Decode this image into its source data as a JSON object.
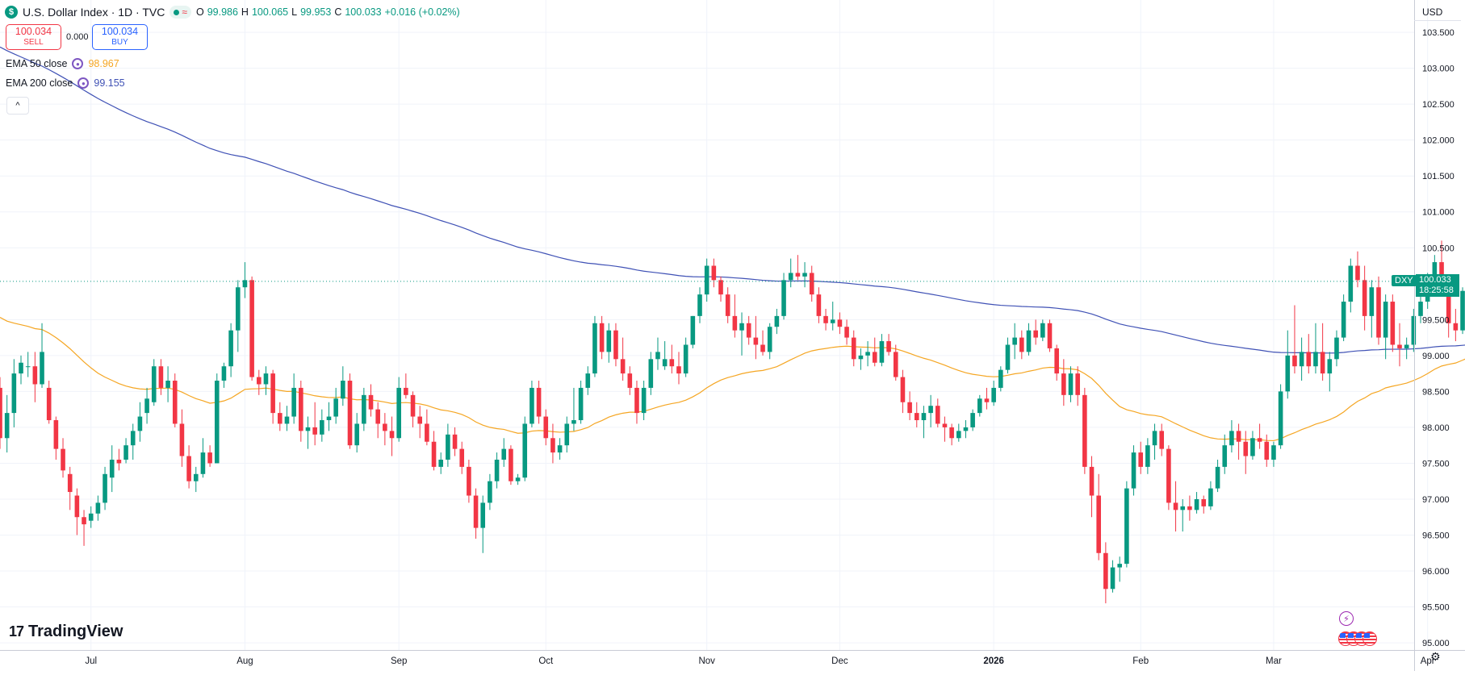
{
  "header": {
    "symbol_title": "U.S. Dollar Index · 1D · TVC",
    "symbol_badge": "$",
    "ohlc": [
      {
        "label": "O",
        "value": "99.986"
      },
      {
        "label": "H",
        "value": "100.065"
      },
      {
        "label": "L",
        "value": "99.953"
      },
      {
        "label": "C",
        "value": "100.033"
      },
      {
        "label": "",
        "value": "+0.016 (+0.02%)"
      }
    ],
    "status_wave": "≈"
  },
  "trade": {
    "sell_price": "100.034",
    "sell_label": "SELL",
    "spread": "0.000",
    "buy_price": "100.034",
    "buy_label": "BUY"
  },
  "indicators": [
    {
      "name": "EMA 50 close",
      "value": "98.967",
      "color": "#f5a623"
    },
    {
      "name": "EMA 200 close",
      "value": "99.155",
      "color": "#3f51b5"
    }
  ],
  "collapse_icon": "^",
  "currency": "USD",
  "last_price": {
    "symbol": "DXY",
    "price": "100.033",
    "countdown": "18:25:58"
  },
  "logo": {
    "mark": "17",
    "text": "TradingView"
  },
  "icons": {
    "bolt": "lightning-icon",
    "flags": "us-flag-icons",
    "settings": "gear-icon"
  },
  "colors": {
    "up": "#089981",
    "down": "#f23645",
    "ema50": "#f5a623",
    "ema200": "#3f51b5",
    "grid": "#f0f3fa"
  },
  "chart_data": {
    "type": "candlestick",
    "ylim": [
      94.9,
      103.95
    ],
    "y_ticks": [
      "103.500",
      "103.000",
      "102.500",
      "102.000",
      "101.500",
      "101.000",
      "100.500",
      "99.500",
      "99.000",
      "98.500",
      "98.000",
      "97.500",
      "97.000",
      "96.500",
      "96.000",
      "95.500",
      "95.000"
    ],
    "x_ticks": [
      {
        "label": "Jul",
        "index": 13
      },
      {
        "label": "Aug",
        "index": 35
      },
      {
        "label": "Sep",
        "index": 57
      },
      {
        "label": "Oct",
        "index": 78
      },
      {
        "label": "Nov",
        "index": 101
      },
      {
        "label": "Dec",
        "index": 120
      },
      {
        "label": "2026",
        "index": 142
      },
      {
        "label": "Feb",
        "index": 163
      },
      {
        "label": "Mar",
        "index": 182
      },
      {
        "label": "Apr",
        "index": 204
      }
    ],
    "last_value": 100.033,
    "ohlc_keys": [
      "open",
      "high",
      "low",
      "close"
    ],
    "candles": [
      [
        98.55,
        98.7,
        97.7,
        97.85
      ],
      [
        97.85,
        98.45,
        97.65,
        98.2
      ],
      [
        98.2,
        98.95,
        98.0,
        98.75
      ],
      [
        98.75,
        99.0,
        98.6,
        98.9
      ],
      [
        98.85,
        99.05,
        98.7,
        98.85
      ],
      [
        98.85,
        99.05,
        98.35,
        98.6
      ],
      [
        98.6,
        99.45,
        98.55,
        99.05
      ],
      [
        98.55,
        98.65,
        98.05,
        98.1
      ],
      [
        98.1,
        98.15,
        97.55,
        97.7
      ],
      [
        97.7,
        97.85,
        97.3,
        97.4
      ],
      [
        97.35,
        97.45,
        96.85,
        97.1
      ],
      [
        97.05,
        97.15,
        96.5,
        96.75
      ],
      [
        96.75,
        96.85,
        96.35,
        96.65
      ],
      [
        96.7,
        96.9,
        96.6,
        96.8
      ],
      [
        96.8,
        97.05,
        96.7,
        96.95
      ],
      [
        96.95,
        97.45,
        96.85,
        97.35
      ],
      [
        97.3,
        97.75,
        97.1,
        97.55
      ],
      [
        97.55,
        97.7,
        97.4,
        97.5
      ],
      [
        97.55,
        97.85,
        97.5,
        97.75
      ],
      [
        97.75,
        98.05,
        97.55,
        97.95
      ],
      [
        97.95,
        98.35,
        97.8,
        98.15
      ],
      [
        98.2,
        98.55,
        98.05,
        98.4
      ],
      [
        98.35,
        98.95,
        98.3,
        98.85
      ],
      [
        98.85,
        98.95,
        98.45,
        98.55
      ],
      [
        98.55,
        98.85,
        98.35,
        98.65
      ],
      [
        98.65,
        98.75,
        98.0,
        98.05
      ],
      [
        98.05,
        98.25,
        97.45,
        97.6
      ],
      [
        97.6,
        97.75,
        97.15,
        97.25
      ],
      [
        97.25,
        97.45,
        97.1,
        97.35
      ],
      [
        97.35,
        97.85,
        97.3,
        97.65
      ],
      [
        97.65,
        97.75,
        97.45,
        97.5
      ],
      [
        97.5,
        98.75,
        97.5,
        98.65
      ],
      [
        98.65,
        98.9,
        98.55,
        98.85
      ],
      [
        98.85,
        99.45,
        98.7,
        99.35
      ],
      [
        99.35,
        100.05,
        99.05,
        99.95
      ],
      [
        99.95,
        100.3,
        99.8,
        100.05
      ],
      [
        100.05,
        100.1,
        98.65,
        98.7
      ],
      [
        98.7,
        98.8,
        98.45,
        98.6
      ],
      [
        98.6,
        98.85,
        98.45,
        98.75
      ],
      [
        98.75,
        98.8,
        98.05,
        98.2
      ],
      [
        98.2,
        98.35,
        97.95,
        98.05
      ],
      [
        98.05,
        98.3,
        97.95,
        98.15
      ],
      [
        98.15,
        98.75,
        98.05,
        98.55
      ],
      [
        98.55,
        98.65,
        97.8,
        97.95
      ],
      [
        97.95,
        98.15,
        97.7,
        98.0
      ],
      [
        98.0,
        98.35,
        97.75,
        97.9
      ],
      [
        97.9,
        98.25,
        97.8,
        98.1
      ],
      [
        98.1,
        98.35,
        97.95,
        98.15
      ],
      [
        98.15,
        98.55,
        98.05,
        98.4
      ],
      [
        98.4,
        98.85,
        98.3,
        98.65
      ],
      [
        98.65,
        98.75,
        97.7,
        97.75
      ],
      [
        97.75,
        98.2,
        97.65,
        98.05
      ],
      [
        98.05,
        98.55,
        97.95,
        98.45
      ],
      [
        98.45,
        98.6,
        98.15,
        98.25
      ],
      [
        98.25,
        98.35,
        97.85,
        98.05
      ],
      [
        98.05,
        98.2,
        97.75,
        97.95
      ],
      [
        97.95,
        98.15,
        97.6,
        97.85
      ],
      [
        97.85,
        98.7,
        97.8,
        98.55
      ],
      [
        98.55,
        98.75,
        98.4,
        98.45
      ],
      [
        98.45,
        98.5,
        98.0,
        98.15
      ],
      [
        98.15,
        98.3,
        97.85,
        98.05
      ],
      [
        98.05,
        98.25,
        97.75,
        97.8
      ],
      [
        97.8,
        97.95,
        97.4,
        97.45
      ],
      [
        97.45,
        97.65,
        97.35,
        97.55
      ],
      [
        97.55,
        98.05,
        97.45,
        97.9
      ],
      [
        97.9,
        98.0,
        97.6,
        97.7
      ],
      [
        97.7,
        97.8,
        97.35,
        97.45
      ],
      [
        97.45,
        97.55,
        96.95,
        97.05
      ],
      [
        97.05,
        97.15,
        96.45,
        96.6
      ],
      [
        96.6,
        97.05,
        96.25,
        96.95
      ],
      [
        96.95,
        97.35,
        96.85,
        97.25
      ],
      [
        97.25,
        97.65,
        97.15,
        97.55
      ],
      [
        97.55,
        97.85,
        97.45,
        97.7
      ],
      [
        97.7,
        97.75,
        97.2,
        97.25
      ],
      [
        97.25,
        97.35,
        97.2,
        97.3
      ],
      [
        97.3,
        98.15,
        97.25,
        98.05
      ],
      [
        98.05,
        98.65,
        98.0,
        98.55
      ],
      [
        98.55,
        98.65,
        98.05,
        98.15
      ],
      [
        98.15,
        98.25,
        97.75,
        97.85
      ],
      [
        97.85,
        98.05,
        97.5,
        97.65
      ],
      [
        97.65,
        97.85,
        97.55,
        97.75
      ],
      [
        97.75,
        98.15,
        97.65,
        98.05
      ],
      [
        98.05,
        98.55,
        97.95,
        98.1
      ],
      [
        98.1,
        98.65,
        98.05,
        98.55
      ],
      [
        98.55,
        98.85,
        98.45,
        98.75
      ],
      [
        98.75,
        99.55,
        98.7,
        99.45
      ],
      [
        99.45,
        99.55,
        98.95,
        99.05
      ],
      [
        99.05,
        99.45,
        98.9,
        99.35
      ],
      [
        99.35,
        99.45,
        98.85,
        98.95
      ],
      [
        98.95,
        99.25,
        98.65,
        98.75
      ],
      [
        98.75,
        98.85,
        98.45,
        98.55
      ],
      [
        98.55,
        98.65,
        98.05,
        98.2
      ],
      [
        98.2,
        98.65,
        98.1,
        98.55
      ],
      [
        98.55,
        99.05,
        98.45,
        98.95
      ],
      [
        98.95,
        99.25,
        98.8,
        99.05
      ],
      [
        98.85,
        99.2,
        98.8,
        98.95
      ],
      [
        98.95,
        99.15,
        98.75,
        98.85
      ],
      [
        98.85,
        99.05,
        98.6,
        98.75
      ],
      [
        98.75,
        99.25,
        98.7,
        99.15
      ],
      [
        99.15,
        99.55,
        99.1,
        99.55
      ],
      [
        99.55,
        99.95,
        99.45,
        99.85
      ],
      [
        99.85,
        100.35,
        99.75,
        100.25
      ],
      [
        100.25,
        100.35,
        99.95,
        100.05
      ],
      [
        100.05,
        100.1,
        99.75,
        99.85
      ],
      [
        99.85,
        99.95,
        99.45,
        99.55
      ],
      [
        99.55,
        99.85,
        99.25,
        99.35
      ],
      [
        99.35,
        99.6,
        99.0,
        99.45
      ],
      [
        99.45,
        99.55,
        99.15,
        99.25
      ],
      [
        99.25,
        99.55,
        98.95,
        99.15
      ],
      [
        99.15,
        99.35,
        99.0,
        99.05
      ],
      [
        99.05,
        99.45,
        98.95,
        99.4
      ],
      [
        99.4,
        99.65,
        99.3,
        99.55
      ],
      [
        99.55,
        100.15,
        99.5,
        100.05
      ],
      [
        100.05,
        100.35,
        99.95,
        100.15
      ],
      [
        100.15,
        100.4,
        100.05,
        100.1
      ],
      [
        100.1,
        100.3,
        99.95,
        100.15
      ],
      [
        100.15,
        100.25,
        99.75,
        99.85
      ],
      [
        99.85,
        99.95,
        99.45,
        99.55
      ],
      [
        99.55,
        99.65,
        99.35,
        99.45
      ],
      [
        99.45,
        99.75,
        99.35,
        99.5
      ],
      [
        99.5,
        99.6,
        99.3,
        99.4
      ],
      [
        99.4,
        99.5,
        99.15,
        99.25
      ],
      [
        99.25,
        99.35,
        98.85,
        98.95
      ],
      [
        98.95,
        99.1,
        98.8,
        99.0
      ],
      [
        99.0,
        99.2,
        98.85,
        99.05
      ],
      [
        99.05,
        99.25,
        98.85,
        98.9
      ],
      [
        98.9,
        99.3,
        98.85,
        99.2
      ],
      [
        99.2,
        99.3,
        99.0,
        99.05
      ],
      [
        99.05,
        99.15,
        98.65,
        98.7
      ],
      [
        98.7,
        98.8,
        98.2,
        98.35
      ],
      [
        98.35,
        98.5,
        98.1,
        98.2
      ],
      [
        98.2,
        98.35,
        98.0,
        98.1
      ],
      [
        98.1,
        98.3,
        97.85,
        98.2
      ],
      [
        98.2,
        98.45,
        98.0,
        98.3
      ],
      [
        98.3,
        98.4,
        98.0,
        98.05
      ],
      [
        98.05,
        98.15,
        97.8,
        98.0
      ],
      [
        98.0,
        98.05,
        97.75,
        97.85
      ],
      [
        97.85,
        98.05,
        97.8,
        97.95
      ],
      [
        97.95,
        98.1,
        97.85,
        98.0
      ],
      [
        98.0,
        98.25,
        97.95,
        98.2
      ],
      [
        98.2,
        98.45,
        98.15,
        98.4
      ],
      [
        98.4,
        98.55,
        98.25,
        98.35
      ],
      [
        98.35,
        98.65,
        98.3,
        98.55
      ],
      [
        98.55,
        98.85,
        98.5,
        98.8
      ],
      [
        98.8,
        99.25,
        98.75,
        99.15
      ],
      [
        99.15,
        99.45,
        98.95,
        99.25
      ],
      [
        99.25,
        99.35,
        98.95,
        99.05
      ],
      [
        99.05,
        99.45,
        99.0,
        99.35
      ],
      [
        99.35,
        99.5,
        99.15,
        99.25
      ],
      [
        99.25,
        99.5,
        99.2,
        99.45
      ],
      [
        99.45,
        99.5,
        99.05,
        99.1
      ],
      [
        99.1,
        99.15,
        98.65,
        98.75
      ],
      [
        98.75,
        98.95,
        98.3,
        98.45
      ],
      [
        98.45,
        98.85,
        98.35,
        98.75
      ],
      [
        98.75,
        98.85,
        98.3,
        98.45
      ],
      [
        98.45,
        98.55,
        97.35,
        97.45
      ],
      [
        97.45,
        97.6,
        96.75,
        97.05
      ],
      [
        97.05,
        97.35,
        96.15,
        96.25
      ],
      [
        96.25,
        96.4,
        95.55,
        95.75
      ],
      [
        95.75,
        96.15,
        95.7,
        96.05
      ],
      [
        96.05,
        96.2,
        95.85,
        96.1
      ],
      [
        96.1,
        97.25,
        96.05,
        97.15
      ],
      [
        97.15,
        97.75,
        97.05,
        97.65
      ],
      [
        97.65,
        97.8,
        97.35,
        97.45
      ],
      [
        97.45,
        97.85,
        97.35,
        97.75
      ],
      [
        97.75,
        98.05,
        97.55,
        97.95
      ],
      [
        97.95,
        98.05,
        97.6,
        97.7
      ],
      [
        97.7,
        97.75,
        96.85,
        96.95
      ],
      [
        96.95,
        97.25,
        96.55,
        96.85
      ],
      [
        96.85,
        97.0,
        96.55,
        96.9
      ],
      [
        96.9,
        97.05,
        96.7,
        96.85
      ],
      [
        96.85,
        97.1,
        96.8,
        97.0
      ],
      [
        97.0,
        97.05,
        96.8,
        96.9
      ],
      [
        96.9,
        97.25,
        96.85,
        97.15
      ],
      [
        97.15,
        97.55,
        97.1,
        97.45
      ],
      [
        97.45,
        97.9,
        97.35,
        97.75
      ],
      [
        97.75,
        98.1,
        97.65,
        97.95
      ],
      [
        97.95,
        98.05,
        97.55,
        97.8
      ],
      [
        97.8,
        97.95,
        97.35,
        97.6
      ],
      [
        97.6,
        97.95,
        97.55,
        97.85
      ],
      [
        97.85,
        98.05,
        97.7,
        97.8
      ],
      [
        97.8,
        97.9,
        97.45,
        97.55
      ],
      [
        97.55,
        97.8,
        97.45,
        97.75
      ],
      [
        97.75,
        98.6,
        97.7,
        98.5
      ],
      [
        98.5,
        99.35,
        98.4,
        99.0
      ],
      [
        99.0,
        99.7,
        98.75,
        98.85
      ],
      [
        98.85,
        99.25,
        98.65,
        99.05
      ],
      [
        99.05,
        99.3,
        98.75,
        98.85
      ],
      [
        98.85,
        99.45,
        98.75,
        99.05
      ],
      [
        99.05,
        99.45,
        98.65,
        98.75
      ],
      [
        98.75,
        99.05,
        98.5,
        98.95
      ],
      [
        98.95,
        99.35,
        98.85,
        99.25
      ],
      [
        99.25,
        99.85,
        99.2,
        99.75
      ],
      [
        99.75,
        100.35,
        99.6,
        100.25
      ],
      [
        100.25,
        100.45,
        99.95,
        100.05
      ],
      [
        100.05,
        100.25,
        99.35,
        99.55
      ],
      [
        99.55,
        100.05,
        99.25,
        99.95
      ],
      [
        99.95,
        100.1,
        99.15,
        99.25
      ],
      [
        99.25,
        99.85,
        98.95,
        99.75
      ],
      [
        99.75,
        99.85,
        99.05,
        99.15
      ],
      [
        99.15,
        99.45,
        98.85,
        99.1
      ],
      [
        99.1,
        99.25,
        98.95,
        99.15
      ],
      [
        99.15,
        99.65,
        99.05,
        99.55
      ],
      [
        99.55,
        99.85,
        99.45,
        99.75
      ],
      [
        99.75,
        100.15,
        99.65,
        100.05
      ],
      [
        100.05,
        100.4,
        99.95,
        100.3
      ],
      [
        100.3,
        100.6,
        99.85,
        99.95
      ],
      [
        99.95,
        100.1,
        99.25,
        99.45
      ],
      [
        99.45,
        99.65,
        99.2,
        99.35
      ],
      [
        99.35,
        99.95,
        99.3,
        99.9
      ],
      [
        99.986,
        100.065,
        99.953,
        100.033
      ]
    ]
  }
}
